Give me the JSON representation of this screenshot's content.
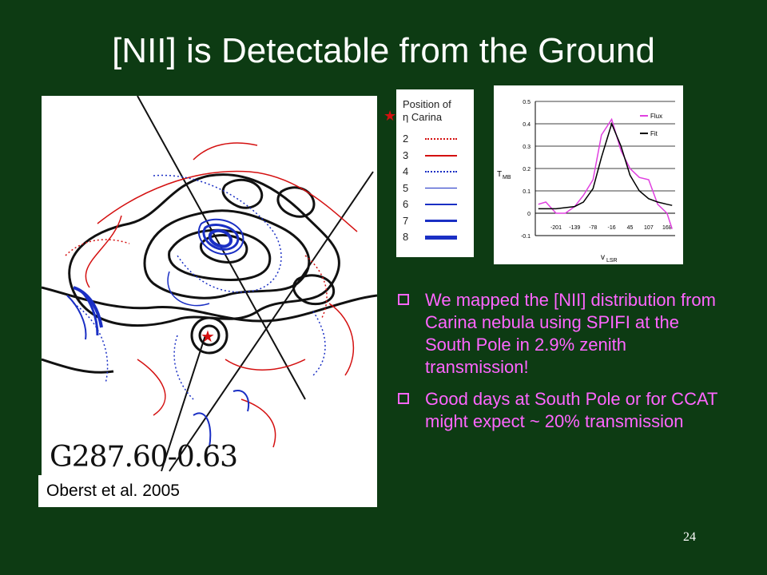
{
  "slide": {
    "title": "[NII] is Detectable from the Ground",
    "page_number": "24"
  },
  "map": {
    "label": "G287.60-0.63",
    "citation": "Oberst et al. 2005"
  },
  "legend": {
    "title_line1": "Position of",
    "title_line2": "η Carina",
    "star_glyph": "★",
    "rows": [
      {
        "label": "2",
        "color": "#d41010",
        "style": "dotted",
        "weight": 2
      },
      {
        "label": "3",
        "color": "#d41010",
        "style": "solid",
        "weight": 2
      },
      {
        "label": "4",
        "color": "#1a2fc4",
        "style": "dotted",
        "weight": 2
      },
      {
        "label": "5",
        "color": "#1a2fc4",
        "style": "solid",
        "weight": 1.5
      },
      {
        "label": "6",
        "color": "#1a2fc4",
        "style": "solid",
        "weight": 2.5
      },
      {
        "label": "7",
        "color": "#1a2fc4",
        "style": "solid",
        "weight": 3.5
      },
      {
        "label": "8",
        "color": "#1a2fc4",
        "style": "solid",
        "weight": 5
      }
    ]
  },
  "chart_data": {
    "type": "line",
    "ylabel": "T",
    "ylabel_sub": "MB",
    "xlabel": "v",
    "xlabel_sub": "LSR",
    "ylim": [
      -0.1,
      0.5
    ],
    "yticks": [
      "0.5",
      "0.4",
      "0.3",
      "0.2",
      "0.1",
      "0",
      "-0.1"
    ],
    "xticks": [
      "-201",
      "-139",
      "-78",
      "-16",
      "45",
      "107",
      "168"
    ],
    "grid": true,
    "legend_position": "top-right",
    "series": [
      {
        "name": "Flux",
        "color": "#e040e0",
        "x": [
          -260,
          -235,
          -201,
          -170,
          -139,
          -110,
          -78,
          -50,
          -16,
          15,
          45,
          76,
          107,
          137,
          168,
          185
        ],
        "y": [
          0.04,
          0.05,
          0.0,
          0.0,
          0.03,
          0.08,
          0.15,
          0.35,
          0.42,
          0.28,
          0.2,
          0.16,
          0.15,
          0.04,
          0.0,
          -0.07
        ]
      },
      {
        "name": "Fit",
        "color": "#000000",
        "x": [
          -260,
          -230,
          -201,
          -170,
          -139,
          -110,
          -78,
          -50,
          -16,
          15,
          45,
          76,
          107,
          137,
          168,
          185
        ],
        "y": [
          0.02,
          0.02,
          0.02,
          0.025,
          0.03,
          0.05,
          0.11,
          0.25,
          0.4,
          0.3,
          0.17,
          0.1,
          0.065,
          0.05,
          0.04,
          0.035
        ]
      }
    ]
  },
  "bullets": [
    {
      "text": "We mapped the [NII] distribution from Carina nebula using SPIFI at the South Pole in 2.9% zenith transmission!"
    },
    {
      "text": "Good days at South Pole or for CCAT might expect ~ 20% transmission"
    }
  ]
}
